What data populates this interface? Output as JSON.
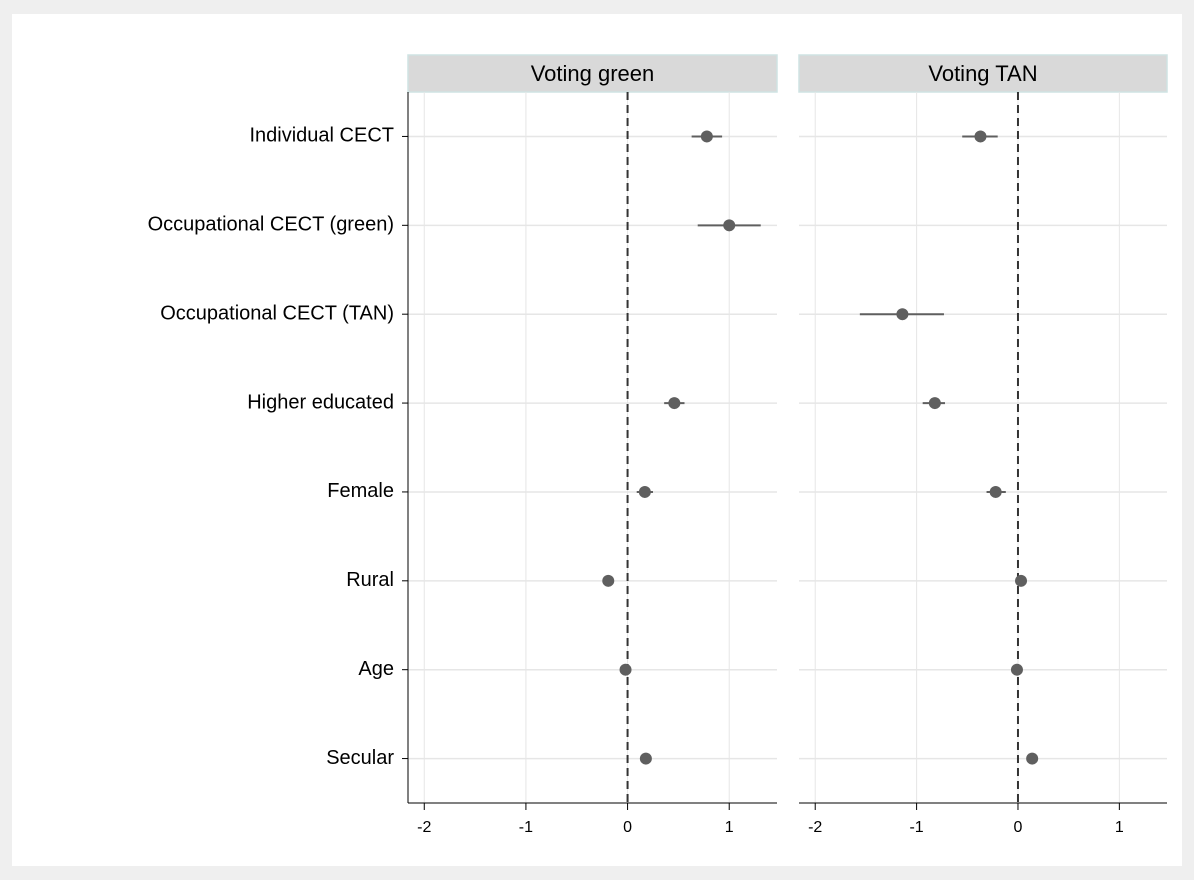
{
  "chart_data": {
    "type": "coefplot",
    "categories": [
      "Individual CECT",
      "Occupational CECT (green)",
      "Occupational CECT (TAN)",
      "Higher educated",
      "Female",
      "Rural",
      "Age",
      "Secular"
    ],
    "xlim": [
      -2.16,
      1.47
    ],
    "xticks": [
      -2,
      -1,
      0,
      1
    ],
    "reference_line": 0,
    "grid": true,
    "color": "#5f5f5f",
    "panels": [
      {
        "title": "Voting green",
        "values": [
          0.78,
          1.0,
          null,
          0.46,
          0.17,
          -0.19,
          -0.02,
          0.18
        ],
        "lower": [
          0.63,
          0.69,
          null,
          0.36,
          0.09,
          -0.21,
          -0.03,
          0.16
        ],
        "upper": [
          0.93,
          1.31,
          null,
          0.56,
          0.25,
          -0.17,
          -0.01,
          0.2
        ]
      },
      {
        "title": "Voting TAN",
        "values": [
          -0.37,
          null,
          -1.14,
          -0.82,
          -0.22,
          0.03,
          -0.01,
          0.14
        ],
        "lower": [
          -0.55,
          null,
          -1.56,
          -0.94,
          -0.31,
          0.02,
          -0.02,
          0.12
        ],
        "upper": [
          -0.2,
          null,
          -0.73,
          -0.72,
          -0.12,
          0.04,
          0.0,
          0.16
        ]
      }
    ]
  }
}
